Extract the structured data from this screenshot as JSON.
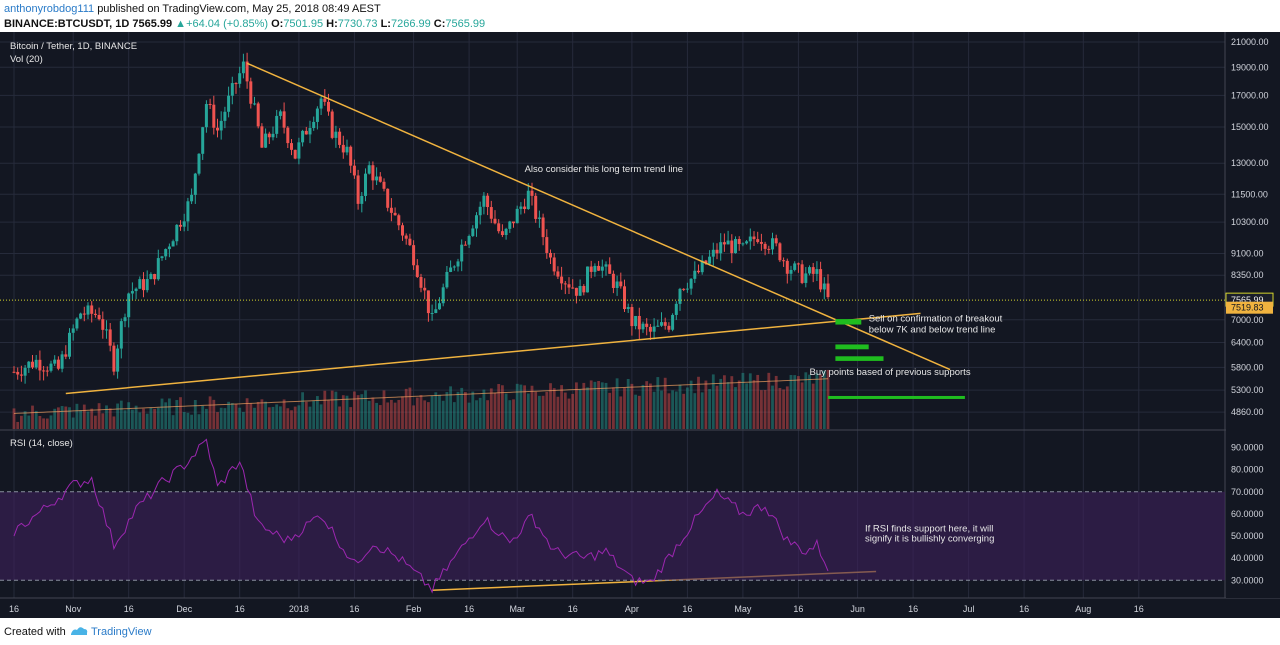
{
  "header": {
    "author": "anthonyrobdog111",
    "published": "published on TradingView.com, May 25, 2018 08:49 AEST",
    "symbol": "BINANCE:BTCUSDT, 1D",
    "last": "7565.99",
    "change": "+64.04 (+0.85%)",
    "o": "7501.95",
    "h": "7730.73",
    "l": "7266.99",
    "c": "7565.99"
  },
  "footer": {
    "created_with": "Created with",
    "brand": "TradingView"
  },
  "colors": {
    "background": "#131722",
    "grid": "#262b3b",
    "up": "#26a69a",
    "down": "#ef5350",
    "trendline": "#f0b33f",
    "rsi_line": "#9c27b0",
    "rsi_band": "#3e1f5c",
    "buy_zone": "#1fbd1f",
    "price_line": "#d4d42c",
    "axis_text": "#d1d4dc"
  },
  "chart_data": {
    "type": "candlestick",
    "title": "Bitcoin / Tether, 1D, BINANCE",
    "volume_label": "Vol (20)",
    "rsi_label": "RSI (14, close)",
    "y_scale": "log",
    "ylim": [
      4600,
      21500
    ],
    "price_ticks": [
      "21000.00",
      "19000.00",
      "17000.00",
      "15000.00",
      "13000.00",
      "11500.00",
      "10300.00",
      "9100.00",
      "8350.00",
      "7000.00",
      "6400.00",
      "5800.00",
      "5300.00",
      "4860.00"
    ],
    "last_price": "7565.99",
    "prev_label": "7519.83",
    "rsi_ticks": [
      "90.0000",
      "80.0000",
      "70.0000",
      "60.0000",
      "50.0000",
      "40.0000",
      "30.0000"
    ],
    "rsi_ylim": [
      22,
      97
    ],
    "rsi_levels": [
      70,
      30
    ],
    "x_ticks": [
      {
        "label": "16",
        "date": "2017-10-16"
      },
      {
        "label": "Nov",
        "date": "2017-11-01"
      },
      {
        "label": "16",
        "date": "2017-11-16"
      },
      {
        "label": "Dec",
        "date": "2017-12-01"
      },
      {
        "label": "16",
        "date": "2017-12-16"
      },
      {
        "label": "2018",
        "date": "2018-01-01"
      },
      {
        "label": "16",
        "date": "2018-01-16"
      },
      {
        "label": "Feb",
        "date": "2018-02-01"
      },
      {
        "label": "16",
        "date": "2018-02-16"
      },
      {
        "label": "Mar",
        "date": "2018-03-01"
      },
      {
        "label": "16",
        "date": "2018-03-16"
      },
      {
        "label": "Apr",
        "date": "2018-04-01"
      },
      {
        "label": "16",
        "date": "2018-04-16"
      },
      {
        "label": "May",
        "date": "2018-05-01"
      },
      {
        "label": "16",
        "date": "2018-05-16"
      },
      {
        "label": "Jun",
        "date": "2018-06-01"
      },
      {
        "label": "16",
        "date": "2018-06-16"
      },
      {
        "label": "Jul",
        "date": "2018-07-01"
      },
      {
        "label": "16",
        "date": "2018-07-16"
      },
      {
        "label": "Aug",
        "date": "2018-08-01"
      },
      {
        "label": "16",
        "date": "2018-08-16"
      }
    ],
    "close_keyframes": [
      [
        "2017-10-16",
        5700
      ],
      [
        "2017-10-22",
        5950
      ],
      [
        "2017-10-28",
        5750
      ],
      [
        "2017-11-03",
        7200
      ],
      [
        "2017-11-08",
        7150
      ],
      [
        "2017-11-12",
        5900
      ],
      [
        "2017-11-16",
        7800
      ],
      [
        "2017-11-22",
        8200
      ],
      [
        "2017-11-28",
        9800
      ],
      [
        "2017-12-03",
        11300
      ],
      [
        "2017-12-07",
        16500
      ],
      [
        "2017-12-10",
        14800
      ],
      [
        "2017-12-17",
        19100
      ],
      [
        "2017-12-22",
        13800
      ],
      [
        "2017-12-27",
        15600
      ],
      [
        "2017-12-31",
        13400
      ],
      [
        "2018-01-07",
        16800
      ],
      [
        "2018-01-10",
        14800
      ],
      [
        "2018-01-14",
        13600
      ],
      [
        "2018-01-17",
        11200
      ],
      [
        "2018-01-20",
        12800
      ],
      [
        "2018-01-25",
        11100
      ],
      [
        "2018-02-01",
        9000
      ],
      [
        "2018-02-06",
        6950
      ],
      [
        "2018-02-10",
        8200
      ],
      [
        "2018-02-16",
        10000
      ],
      [
        "2018-02-20",
        11300
      ],
      [
        "2018-02-25",
        9600
      ],
      [
        "2018-03-04",
        11500
      ],
      [
        "2018-03-10",
        8900
      ],
      [
        "2018-03-14",
        8200
      ],
      [
        "2018-03-18",
        7800
      ],
      [
        "2018-03-22",
        8900
      ],
      [
        "2018-03-28",
        8000
      ],
      [
        "2018-04-01",
        6950
      ],
      [
        "2018-04-06",
        6650
      ],
      [
        "2018-04-11",
        6900
      ],
      [
        "2018-04-14",
        8000
      ],
      [
        "2018-04-18",
        8300
      ],
      [
        "2018-04-22",
        8900
      ],
      [
        "2018-04-26",
        9500
      ],
      [
        "2018-05-01",
        9200
      ],
      [
        "2018-05-05",
        9800
      ],
      [
        "2018-05-10",
        9300
      ],
      [
        "2018-05-13",
        8700
      ],
      [
        "2018-05-17",
        8350
      ],
      [
        "2018-05-21",
        8400
      ],
      [
        "2018-05-24",
        7566
      ]
    ],
    "volume_ma_relative": true,
    "rsi_keyframes": [
      [
        "2017-10-16",
        52
      ],
      [
        "2017-10-24",
        62
      ],
      [
        "2017-11-01",
        73
      ],
      [
        "2017-11-06",
        76
      ],
      [
        "2017-11-12",
        46
      ],
      [
        "2017-11-18",
        62
      ],
      [
        "2017-11-25",
        74
      ],
      [
        "2017-12-01",
        82
      ],
      [
        "2017-12-07",
        93
      ],
      [
        "2017-12-10",
        72
      ],
      [
        "2017-12-16",
        84
      ],
      [
        "2017-12-21",
        55
      ],
      [
        "2017-12-29",
        48
      ],
      [
        "2018-01-07",
        60
      ],
      [
        "2018-01-16",
        37
      ],
      [
        "2018-01-21",
        47
      ],
      [
        "2018-01-28",
        40
      ],
      [
        "2018-02-06",
        26
      ],
      [
        "2018-02-12",
        40
      ],
      [
        "2018-02-20",
        58
      ],
      [
        "2018-02-27",
        47
      ],
      [
        "2018-03-05",
        59
      ],
      [
        "2018-03-11",
        43
      ],
      [
        "2018-03-19",
        40
      ],
      [
        "2018-03-25",
        43
      ],
      [
        "2018-04-01",
        30
      ],
      [
        "2018-04-06",
        29
      ],
      [
        "2018-04-12",
        43
      ],
      [
        "2018-04-18",
        57
      ],
      [
        "2018-04-24",
        69
      ],
      [
        "2018-05-01",
        60
      ],
      [
        "2018-05-07",
        64
      ],
      [
        "2018-05-13",
        48
      ],
      [
        "2018-05-18",
        43
      ],
      [
        "2018-05-21",
        46
      ],
      [
        "2018-05-24",
        36
      ]
    ],
    "trendlines": [
      {
        "name": "long-term-down",
        "from": [
          "2017-12-18",
          19300
        ],
        "to": [
          "2018-06-26",
          5750
        ]
      },
      {
        "name": "rising-support",
        "from": [
          "2017-10-30",
          5230
        ],
        "to": [
          "2018-06-18",
          7180
        ]
      },
      {
        "name": "rsi-support",
        "from": [
          "2018-02-06",
          25.5
        ],
        "to": [
          "2018-06-06",
          34
        ]
      }
    ],
    "zones": [
      {
        "from": "2018-05-26",
        "to": "2018-06-02",
        "lo": 6870,
        "hi": 7020
      },
      {
        "from": "2018-05-26",
        "to": "2018-06-04",
        "lo": 6230,
        "hi": 6350
      },
      {
        "from": "2018-05-26",
        "to": "2018-06-08",
        "lo": 5950,
        "hi": 6060
      },
      {
        "from": "2018-05-24",
        "to": "2018-06-30",
        "lo": 5120,
        "hi": 5180
      }
    ],
    "annotations": [
      {
        "text": "Also consider this long term trend line",
        "date": "2018-03-03",
        "value": 12550
      },
      {
        "text": "Sell on confirmation of breakout",
        "date": "2018-06-04",
        "value": 6950
      },
      {
        "text": "below 7K and below trend line",
        "date": "2018-06-04",
        "value": 6660
      },
      {
        "text": "Buy points based of previous supports",
        "date": "2018-05-19",
        "value": 5630
      }
    ],
    "rsi_annotations": [
      {
        "text": "If RSI finds support here, it will",
        "date": "2018-06-03",
        "value": 52
      },
      {
        "text": "signify it is bullishly converging",
        "date": "2018-06-03",
        "value": 47.5
      }
    ]
  }
}
